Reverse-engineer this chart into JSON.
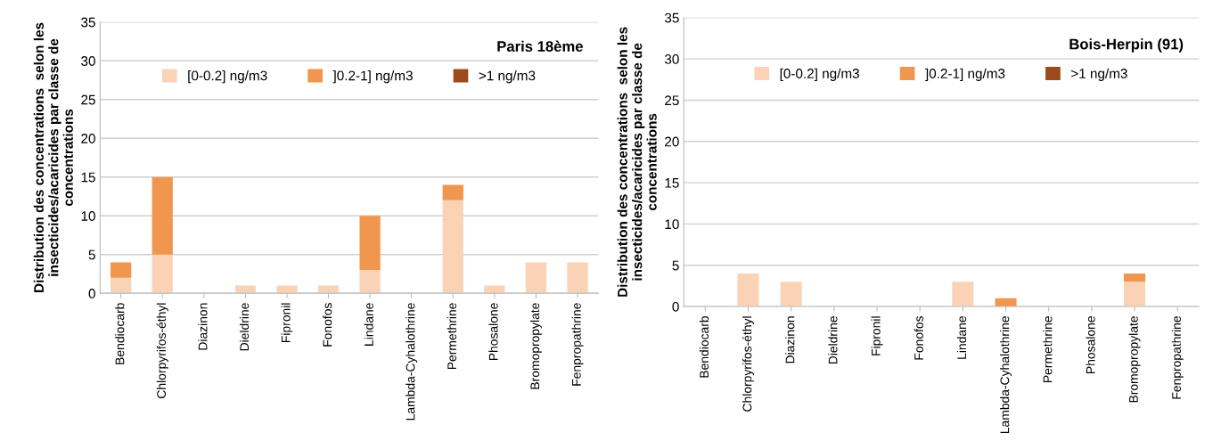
{
  "chart_data": [
    {
      "type": "bar",
      "stacked": true,
      "title": "Paris 18ème",
      "ylabel": "Distribution des concentrations  selon les insecticides/acaricides par classe de concentrations",
      "categories": [
        "Bendiocarb",
        "Chlorpyrifos-éthyl",
        "Diazinon",
        "Dieldrine",
        "Fipronil",
        "Fonofos",
        "Lindane",
        "Lambda-Cyhalothrine",
        "Permethrine",
        "Phosalone",
        "Bromopropylate",
        "Fenpropathrine"
      ],
      "series": [
        {
          "name": "[0-0.2] ng/m3",
          "color": "#fad3b6",
          "values": [
            2,
            5,
            0,
            1,
            1,
            1,
            3,
            0,
            12,
            1,
            4,
            4
          ]
        },
        {
          "name": "]0.2-1] ng/m3",
          "color": "#f0964f",
          "values": [
            2,
            10,
            0,
            0,
            0,
            0,
            7,
            0,
            2,
            0,
            0,
            0
          ]
        },
        {
          "name": ">1 ng/m3",
          "color": "#9c4a1c",
          "values": [
            0,
            0,
            0,
            0,
            0,
            0,
            0,
            0,
            0,
            0,
            0,
            0
          ]
        }
      ],
      "ylim": [
        0,
        35
      ],
      "yticks": [
        0,
        5,
        10,
        15,
        20,
        25,
        30,
        35
      ],
      "grid": "y",
      "legend": "top"
    },
    {
      "type": "bar",
      "stacked": true,
      "title": "Bois-Herpin (91)",
      "ylabel": "Distribution des concentrations  selon les insecticides/acaricides par classe de concentrations",
      "categories": [
        "Bendiocarb",
        "Chlorpyrifos-éthyl",
        "Diazinon",
        "Dieldrine",
        "Fipronil",
        "Fonofos",
        "Lindane",
        "Lambda-Cyhalothrine",
        "Permethrine",
        "Phosalone",
        "Bromopropylate",
        "Fenpropathrine"
      ],
      "series": [
        {
          "name": "[0-0.2] ng/m3",
          "color": "#fad3b6",
          "values": [
            0,
            4,
            3,
            0,
            0,
            0,
            3,
            0,
            0,
            0,
            3,
            0
          ]
        },
        {
          "name": "]0.2-1] ng/m3",
          "color": "#f0964f",
          "values": [
            0,
            0,
            0,
            0,
            0,
            0,
            0,
            1,
            0,
            0,
            1,
            0
          ]
        },
        {
          "name": ">1 ng/m3",
          "color": "#9c4a1c",
          "values": [
            0,
            0,
            0,
            0,
            0,
            0,
            0,
            0,
            0,
            0,
            0,
            0
          ]
        }
      ],
      "ylim": [
        0,
        35
      ],
      "yticks": [
        0,
        5,
        10,
        15,
        20,
        25,
        30,
        35
      ],
      "grid": "y",
      "legend": "top"
    }
  ]
}
